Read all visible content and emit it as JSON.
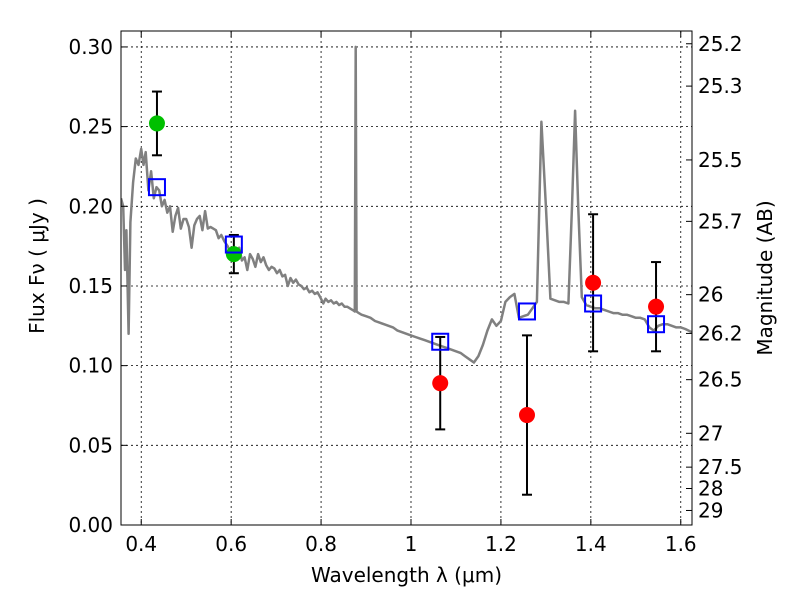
{
  "chart_data": {
    "type": "scatter",
    "xlabel": "Wavelength  λ (μm)",
    "ylabel": "Flux  Fν  ( μJy )",
    "ylabel_right": "Magnitude (AB)",
    "xlim": [
      0.355,
      1.625
    ],
    "ylim": [
      0.0,
      0.31
    ],
    "grid": true,
    "x_ticks": [
      0.4,
      0.6,
      0.8,
      1.0,
      1.2,
      1.4,
      1.6
    ],
    "x_tick_labels": [
      "0.4",
      "0.6",
      "0.8",
      "1",
      "1.2",
      "1.4",
      "1.6"
    ],
    "y_ticks": [
      0.0,
      0.05,
      0.1,
      0.15,
      0.2,
      0.25,
      0.3
    ],
    "y_tick_labels": [
      "0.00",
      "0.05",
      "0.10",
      "0.15",
      "0.20",
      "0.25",
      "0.30"
    ],
    "right_ticks": [
      {
        "mag": 25.2,
        "label": "25.2"
      },
      {
        "mag": 25.3,
        "label": "25.3"
      },
      {
        "mag": 25.5,
        "label": "25.5"
      },
      {
        "mag": 25.7,
        "label": "25.7"
      },
      {
        "mag": 26.0,
        "label": "26"
      },
      {
        "mag": 26.2,
        "label": "26.2"
      },
      {
        "mag": 26.5,
        "label": "26.5"
      },
      {
        "mag": 27.0,
        "label": "27"
      },
      {
        "mag": 27.5,
        "label": "27.5"
      },
      {
        "mag": 28.0,
        "label": "28"
      },
      {
        "mag": 29.0,
        "label": "29"
      }
    ],
    "series": [
      {
        "kind": "line",
        "color": "#808080",
        "points": [
          [
            0.355,
            0.205
          ],
          [
            0.36,
            0.2
          ],
          [
            0.364,
            0.16
          ],
          [
            0.367,
            0.185
          ],
          [
            0.372,
            0.12
          ],
          [
            0.376,
            0.19
          ],
          [
            0.382,
            0.215
          ],
          [
            0.388,
            0.23
          ],
          [
            0.394,
            0.226
          ],
          [
            0.4,
            0.236
          ],
          [
            0.405,
            0.226
          ],
          [
            0.41,
            0.234
          ],
          [
            0.416,
            0.21
          ],
          [
            0.422,
            0.222
          ],
          [
            0.428,
            0.205
          ],
          [
            0.434,
            0.212
          ],
          [
            0.44,
            0.21
          ],
          [
            0.446,
            0.2
          ],
          [
            0.452,
            0.204
          ],
          [
            0.458,
            0.196
          ],
          [
            0.464,
            0.2
          ],
          [
            0.47,
            0.184
          ],
          [
            0.476,
            0.194
          ],
          [
            0.482,
            0.199
          ],
          [
            0.488,
            0.186
          ],
          [
            0.494,
            0.192
          ],
          [
            0.5,
            0.192
          ],
          [
            0.506,
            0.187
          ],
          [
            0.512,
            0.174
          ],
          [
            0.518,
            0.188
          ],
          [
            0.524,
            0.192
          ],
          [
            0.53,
            0.194
          ],
          [
            0.536,
            0.185
          ],
          [
            0.542,
            0.197
          ],
          [
            0.548,
            0.186
          ],
          [
            0.554,
            0.187
          ],
          [
            0.56,
            0.186
          ],
          [
            0.566,
            0.185
          ],
          [
            0.572,
            0.18
          ],
          [
            0.578,
            0.182
          ],
          [
            0.585,
            0.178
          ],
          [
            0.592,
            0.175
          ],
          [
            0.6,
            0.17
          ],
          [
            0.606,
            0.172
          ],
          [
            0.612,
            0.168
          ],
          [
            0.618,
            0.174
          ],
          [
            0.624,
            0.166
          ],
          [
            0.63,
            0.168
          ],
          [
            0.636,
            0.16
          ],
          [
            0.642,
            0.17
          ],
          [
            0.648,
            0.167
          ],
          [
            0.654,
            0.162
          ],
          [
            0.66,
            0.17
          ],
          [
            0.666,
            0.165
          ],
          [
            0.672,
            0.168
          ],
          [
            0.678,
            0.163
          ],
          [
            0.684,
            0.16
          ],
          [
            0.69,
            0.162
          ],
          [
            0.696,
            0.161
          ],
          [
            0.702,
            0.158
          ],
          [
            0.708,
            0.16
          ],
          [
            0.714,
            0.156
          ],
          [
            0.72,
            0.157
          ],
          [
            0.726,
            0.15
          ],
          [
            0.732,
            0.155
          ],
          [
            0.738,
            0.152
          ],
          [
            0.744,
            0.154
          ],
          [
            0.75,
            0.151
          ],
          [
            0.756,
            0.15
          ],
          [
            0.762,
            0.148
          ],
          [
            0.768,
            0.149
          ],
          [
            0.774,
            0.146
          ],
          [
            0.78,
            0.147
          ],
          [
            0.786,
            0.145
          ],
          [
            0.792,
            0.146
          ],
          [
            0.798,
            0.143
          ],
          [
            0.805,
            0.139
          ],
          [
            0.81,
            0.142
          ],
          [
            0.816,
            0.14
          ],
          [
            0.822,
            0.141
          ],
          [
            0.828,
            0.139
          ],
          [
            0.834,
            0.14
          ],
          [
            0.84,
            0.138
          ],
          [
            0.846,
            0.139
          ],
          [
            0.852,
            0.137
          ],
          [
            0.858,
            0.137
          ],
          [
            0.864,
            0.136
          ],
          [
            0.87,
            0.135
          ],
          [
            0.875,
            0.134
          ],
          [
            0.877,
            0.3
          ],
          [
            0.879,
            0.134
          ],
          [
            0.884,
            0.133
          ],
          [
            0.89,
            0.132
          ],
          [
            0.9,
            0.131
          ],
          [
            0.91,
            0.13
          ],
          [
            0.92,
            0.128
          ],
          [
            0.93,
            0.127
          ],
          [
            0.94,
            0.126
          ],
          [
            0.95,
            0.125
          ],
          [
            0.96,
            0.124
          ],
          [
            0.97,
            0.122
          ],
          [
            0.98,
            0.121
          ],
          [
            0.99,
            0.12
          ],
          [
            1.0,
            0.119
          ],
          [
            1.01,
            0.118
          ],
          [
            1.02,
            0.117
          ],
          [
            1.03,
            0.116
          ],
          [
            1.04,
            0.115
          ],
          [
            1.05,
            0.114
          ],
          [
            1.06,
            0.113
          ],
          [
            1.07,
            0.112
          ],
          [
            1.08,
            0.111
          ],
          [
            1.09,
            0.11
          ],
          [
            1.1,
            0.109
          ],
          [
            1.11,
            0.108
          ],
          [
            1.12,
            0.106
          ],
          [
            1.13,
            0.104
          ],
          [
            1.14,
            0.102
          ],
          [
            1.15,
            0.106
          ],
          [
            1.16,
            0.113
          ],
          [
            1.17,
            0.122
          ],
          [
            1.18,
            0.129
          ],
          [
            1.19,
            0.125
          ],
          [
            1.2,
            0.128
          ],
          [
            1.21,
            0.14
          ],
          [
            1.22,
            0.143
          ],
          [
            1.23,
            0.145
          ],
          [
            1.24,
            0.13
          ],
          [
            1.25,
            0.131
          ],
          [
            1.26,
            0.132
          ],
          [
            1.27,
            0.136
          ],
          [
            1.28,
            0.14
          ],
          [
            1.29,
            0.253
          ],
          [
            1.3,
            0.2
          ],
          [
            1.31,
            0.142
          ],
          [
            1.32,
            0.141
          ],
          [
            1.33,
            0.14
          ],
          [
            1.34,
            0.14
          ],
          [
            1.35,
            0.139
          ],
          [
            1.358,
            0.2
          ],
          [
            1.365,
            0.26
          ],
          [
            1.372,
            0.2
          ],
          [
            1.38,
            0.143
          ],
          [
            1.39,
            0.138
          ],
          [
            1.4,
            0.137
          ],
          [
            1.41,
            0.136
          ],
          [
            1.42,
            0.136
          ],
          [
            1.43,
            0.135
          ],
          [
            1.44,
            0.134
          ],
          [
            1.45,
            0.133
          ],
          [
            1.46,
            0.133
          ],
          [
            1.47,
            0.132
          ],
          [
            1.48,
            0.132
          ],
          [
            1.49,
            0.131
          ],
          [
            1.5,
            0.13
          ],
          [
            1.51,
            0.13
          ],
          [
            1.52,
            0.129
          ],
          [
            1.53,
            0.124
          ],
          [
            1.54,
            0.122
          ],
          [
            1.55,
            0.125
          ],
          [
            1.56,
            0.126
          ],
          [
            1.57,
            0.126
          ],
          [
            1.58,
            0.125
          ],
          [
            1.59,
            0.124
          ],
          [
            1.6,
            0.124
          ],
          [
            1.61,
            0.123
          ],
          [
            1.625,
            0.121
          ]
        ]
      },
      {
        "kind": "points",
        "marker": "circle",
        "color": "#00c000",
        "points": [
          {
            "x": 0.435,
            "y": 0.252,
            "err": 0.02
          },
          {
            "x": 0.606,
            "y": 0.17,
            "err": 0.012
          }
        ]
      },
      {
        "kind": "points",
        "marker": "circle",
        "color": "#ff0000",
        "points": [
          {
            "x": 1.065,
            "y": 0.089,
            "err": 0.029
          },
          {
            "x": 1.258,
            "y": 0.069,
            "err": 0.05
          },
          {
            "x": 1.405,
            "y": 0.152,
            "err": 0.043
          },
          {
            "x": 1.545,
            "y": 0.137,
            "err": 0.028
          }
        ]
      },
      {
        "kind": "points",
        "marker": "square",
        "color": "#0000ff",
        "points": [
          {
            "x": 0.435,
            "y": 0.212
          },
          {
            "x": 0.606,
            "y": 0.176
          },
          {
            "x": 1.065,
            "y": 0.115
          },
          {
            "x": 1.258,
            "y": 0.134
          },
          {
            "x": 1.405,
            "y": 0.139
          },
          {
            "x": 1.545,
            "y": 0.126
          }
        ]
      }
    ]
  }
}
